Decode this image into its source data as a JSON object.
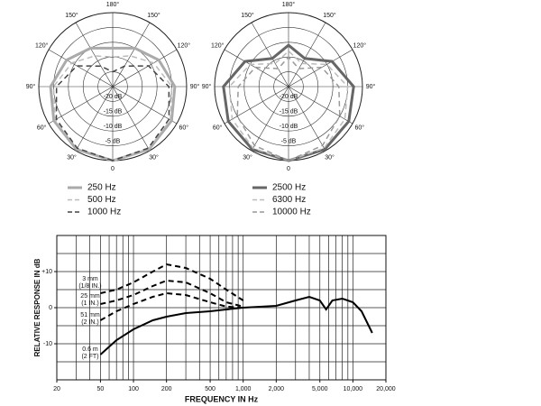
{
  "chart_data": [
    {
      "type": "polar",
      "theta": [
        0,
        30,
        60,
        90,
        120,
        150,
        180,
        210,
        240,
        270,
        300,
        330
      ],
      "rlim": [
        -25,
        0
      ],
      "rticks": [
        {
          "value": -5,
          "label": "-5 dB"
        },
        {
          "value": -10,
          "label": "-10 dB"
        },
        {
          "value": -15,
          "label": "-15 dB"
        },
        {
          "value": -20,
          "label": "-20 dB"
        }
      ],
      "thetaticks": [
        0,
        {
          "value": 30,
          "label": "30°"
        },
        {
          "value": 60,
          "label": "60°"
        },
        {
          "value": 90,
          "label": "90°"
        },
        {
          "value": 120,
          "label": "120°"
        },
        {
          "value": 150,
          "label": "150°"
        },
        {
          "value": 180,
          "label": "180°"
        },
        {
          "value": 210,
          "label": "150°"
        },
        {
          "value": 240,
          "label": "120°"
        },
        {
          "value": 270,
          "label": "90°"
        },
        {
          "value": 300,
          "label": "60°"
        },
        {
          "value": 330,
          "label": "30°"
        }
      ],
      "series": [
        {
          "name": "250 Hz",
          "color": "#aaaaaa",
          "width": 3,
          "dash": false,
          "values": [
            0,
            -0.5,
            -2,
            -4,
            -7,
            -10,
            -12,
            -10,
            -7,
            -4,
            -2,
            -0.5
          ]
        },
        {
          "name": "500 Hz",
          "color": "#bbbbbb",
          "width": 1.5,
          "dash": true,
          "values": [
            0,
            -0.7,
            -2.5,
            -5,
            -9,
            -13,
            -15,
            -13,
            -9,
            -5,
            -2.5,
            -0.7
          ]
        },
        {
          "name": "1000 Hz",
          "color": "#444444",
          "width": 1.5,
          "dash": true,
          "values": [
            0,
            -1,
            -3,
            -6,
            -11,
            -17,
            -20,
            -17,
            -11,
            -6,
            -3,
            -1
          ]
        }
      ]
    },
    {
      "type": "polar",
      "theta": [
        0,
        30,
        60,
        90,
        120,
        150,
        180,
        210,
        240,
        270,
        300,
        330
      ],
      "rlim": [
        -25,
        0
      ],
      "rticks": [
        {
          "value": -5,
          "label": "-5 dB"
        },
        {
          "value": -10,
          "label": "-10 dB"
        },
        {
          "value": -15,
          "label": "-15 dB"
        },
        {
          "value": -20,
          "label": "-20 dB"
        }
      ],
      "thetaticks": [
        0,
        {
          "value": 30,
          "label": "30°"
        },
        {
          "value": 60,
          "label": "60°"
        },
        {
          "value": 90,
          "label": "90°"
        },
        {
          "value": 120,
          "label": "120°"
        },
        {
          "value": 150,
          "label": "150°"
        },
        {
          "value": 180,
          "label": "180°"
        },
        {
          "value": 210,
          "label": "150°"
        },
        {
          "value": 240,
          "label": "120°"
        },
        {
          "value": 270,
          "label": "90°"
        },
        {
          "value": 300,
          "label": "60°"
        },
        {
          "value": 330,
          "label": "30°"
        }
      ],
      "series": [
        {
          "name": "2500 Hz",
          "color": "#666666",
          "width": 3,
          "dash": false,
          "values": [
            0,
            -0.5,
            -1.5,
            -3,
            -8,
            -14,
            -11,
            -14,
            -8,
            -3,
            -1.5,
            -0.5
          ]
        },
        {
          "name": "6300 Hz",
          "color": "#bbbbbb",
          "width": 1.5,
          "dash": true,
          "values": [
            0,
            -1,
            -3,
            -5,
            -10,
            -16,
            -13,
            -16,
            -10,
            -5,
            -3,
            -1
          ]
        },
        {
          "name": "10000 Hz",
          "color": "#999999",
          "width": 1.5,
          "dash": true,
          "values": [
            0,
            -2,
            -5,
            -8,
            -12,
            -18,
            -15,
            -18,
            -12,
            -8,
            -5,
            -2
          ]
        }
      ]
    },
    {
      "type": "line",
      "x_label": "FREQUENCY IN Hz",
      "y_label": "RELATIVE RESPONSE IN dB",
      "log_x": true,
      "xlim": [
        20,
        20000
      ],
      "ylim": [
        -20,
        20
      ],
      "xticks": [
        20,
        50,
        100,
        200,
        500,
        {
          "value": 1000,
          "label": "1,000"
        },
        {
          "value": 2000,
          "label": "2,000"
        },
        {
          "value": 5000,
          "label": "5,000"
        },
        {
          "value": 10000,
          "label": "10,000"
        },
        {
          "value": 20000,
          "label": "20,000"
        }
      ],
      "yticks": [
        {
          "value": 10,
          "label": "+10"
        },
        0,
        -10
      ],
      "xgrid": [
        30,
        40,
        50,
        60,
        70,
        80,
        90,
        100,
        200,
        300,
        400,
        500,
        600,
        700,
        800,
        900,
        1000,
        2000,
        3000,
        4000,
        5000,
        6000,
        7000,
        8000,
        9000,
        10000
      ],
      "ygrid": [
        -15,
        -10,
        -5,
        0,
        5,
        10,
        15
      ],
      "series": [
        {
          "name": "3 mm",
          "note": "(1/8 IN.)",
          "color": "#000000",
          "dash": true,
          "x": [
            50,
            70,
            100,
            150,
            200,
            300,
            500,
            700,
            1000
          ],
          "values": [
            4,
            5,
            7,
            10,
            12,
            11,
            8,
            5,
            2
          ]
        },
        {
          "name": "25 mm",
          "note": "(1 IN.)",
          "color": "#000000",
          "dash": true,
          "x": [
            50,
            70,
            100,
            150,
            200,
            300,
            500,
            700,
            1000
          ],
          "values": [
            1,
            2,
            3.5,
            6,
            7.5,
            7,
            4,
            1.5,
            0.3
          ]
        },
        {
          "name": "51 mm",
          "note": "(2 IN.)",
          "color": "#000000",
          "dash": true,
          "x": [
            50,
            70,
            100,
            150,
            200,
            300,
            500,
            700,
            1000
          ],
          "values": [
            -3.5,
            -1,
            1,
            3,
            4,
            3.5,
            1.5,
            0.3,
            0
          ]
        },
        {
          "name": "0.6 m",
          "note": "(2 FT)",
          "color": "#000000",
          "dash": false,
          "x": [
            50,
            70,
            100,
            150,
            200,
            300,
            500,
            700,
            1000,
            2000,
            3000,
            4000,
            5000,
            5700,
            6500,
            8000,
            10000,
            12000,
            15000
          ],
          "values": [
            -13,
            -9,
            -6,
            -3.5,
            -2.5,
            -1.5,
            -1,
            -0.5,
            0,
            0.5,
            2,
            3,
            2,
            -0.5,
            2,
            2.5,
            1.5,
            -1,
            -7
          ]
        }
      ]
    }
  ]
}
